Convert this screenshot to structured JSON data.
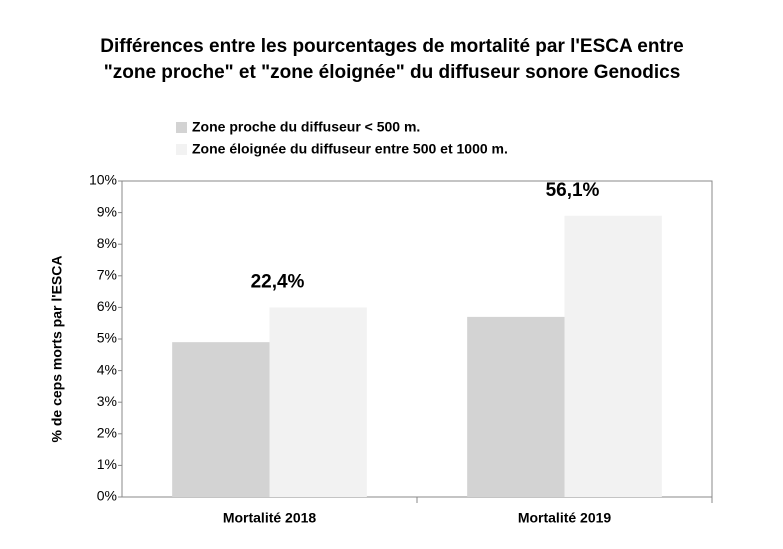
{
  "chart_data": {
    "type": "bar",
    "title": [
      "Différences entre les pourcentages de mortalité par l'ESCA entre",
      "\"zone proche\" et \"zone éloignée\" du diffuseur sonore Genodics"
    ],
    "y_label": "% de ceps morts par l'ESCA",
    "categories": [
      "Mortalité 2018",
      "Mortalité 2019"
    ],
    "series": [
      {
        "name": "Zone proche du diffuseur < 500 m.",
        "color": "#d3d3d3",
        "values": [
          4.9,
          5.7
        ]
      },
      {
        "name": "Zone éloignée du diffuseur entre 500 et 1000 m.",
        "color": "#f2f2f2",
        "values": [
          6.0,
          8.9
        ]
      }
    ],
    "annotations": [
      "22,4%",
      "56,1%"
    ],
    "ylim": [
      0,
      10
    ],
    "yticks": [
      {
        "value": 0,
        "label": "0%"
      },
      {
        "value": 1,
        "label": "1%"
      },
      {
        "value": 2,
        "label": "2%"
      },
      {
        "value": 3,
        "label": "3%"
      },
      {
        "value": 4,
        "label": "4%"
      },
      {
        "value": 5,
        "label": "5%"
      },
      {
        "value": 6,
        "label": "6%"
      },
      {
        "value": 7,
        "label": "7%"
      },
      {
        "value": 8,
        "label": "8%"
      },
      {
        "value": 9,
        "label": "9%"
      },
      {
        "value": 10,
        "label": "10%"
      }
    ],
    "grid": false,
    "legend": "top-left"
  }
}
